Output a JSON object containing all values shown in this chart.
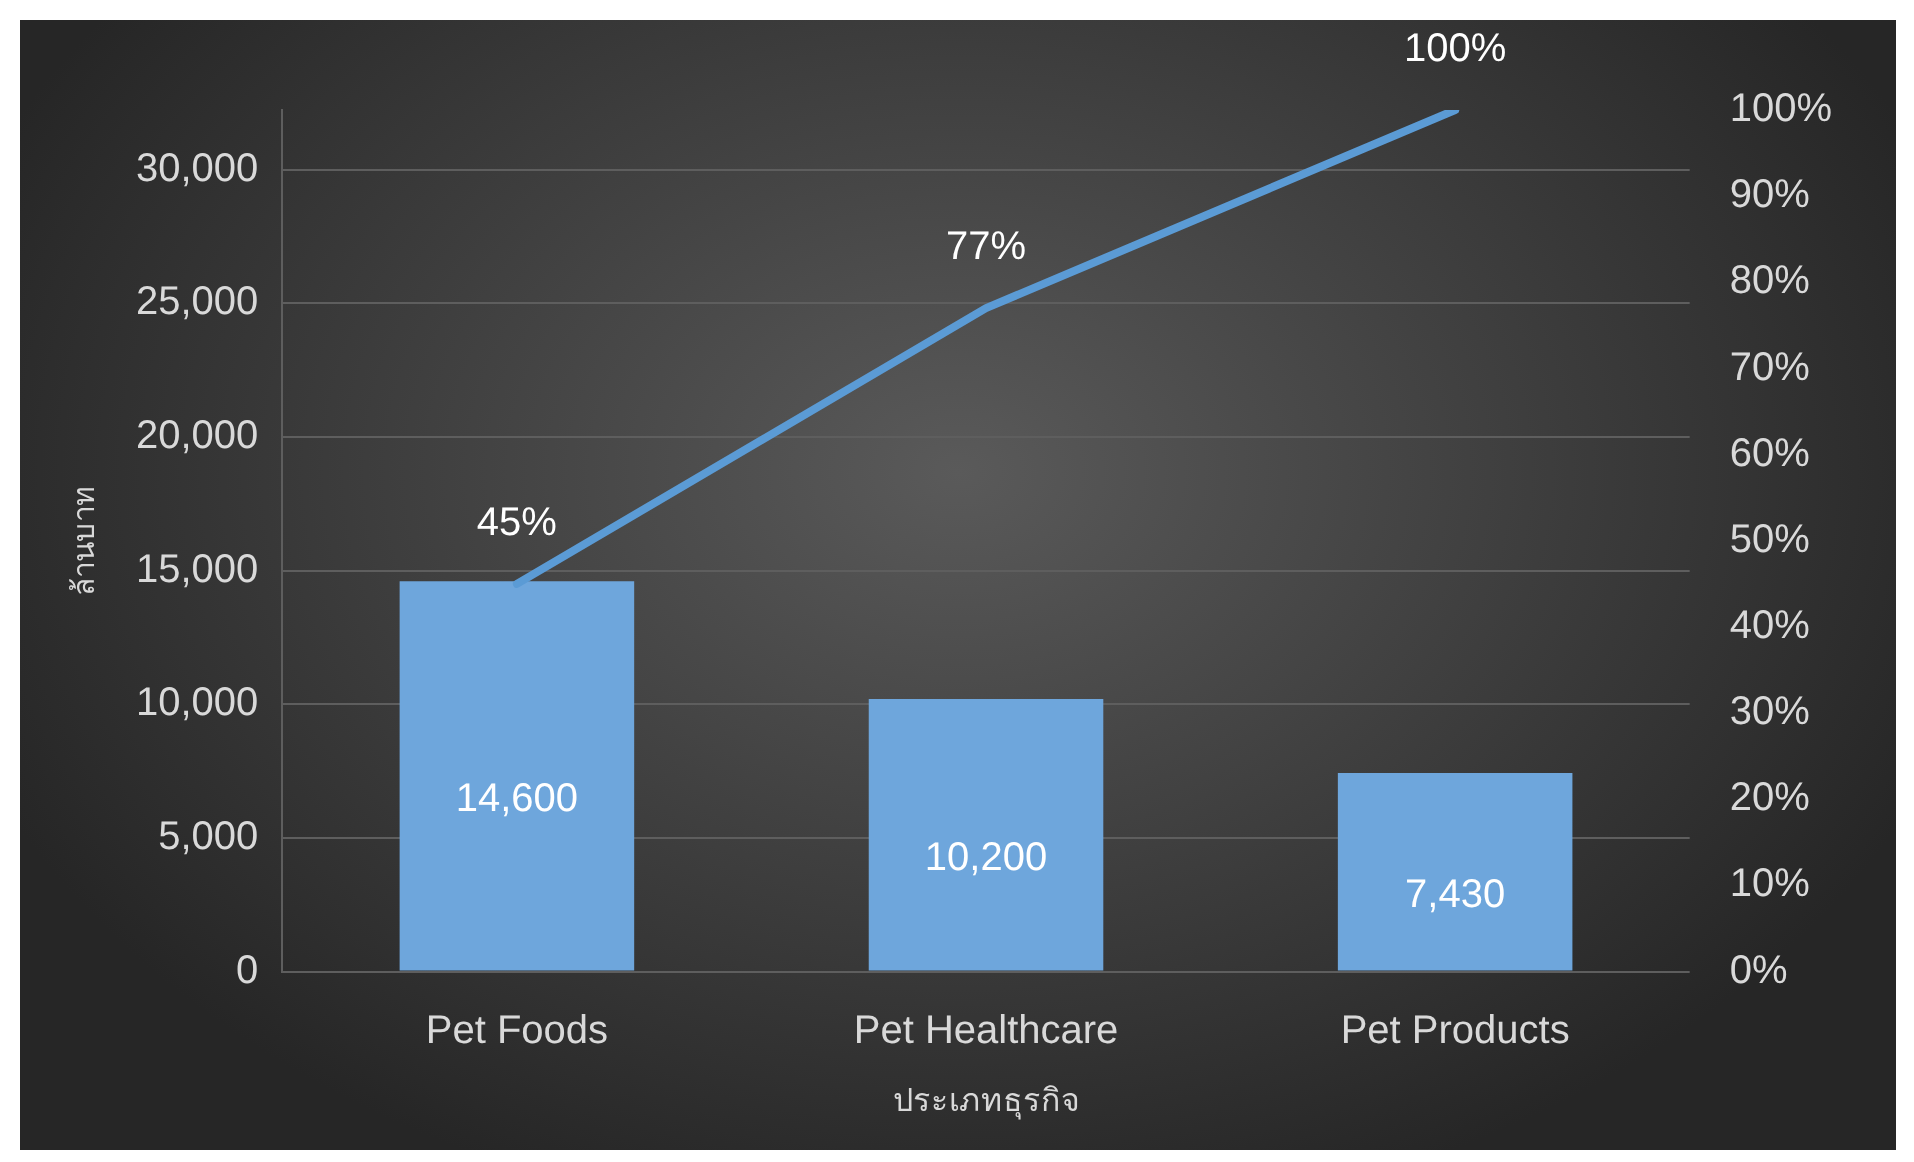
{
  "chart_data": {
    "type": "bar",
    "xlabel": "ประเภทธุรกิจ",
    "ylabel": "ล้านบาท",
    "categories": [
      "Pet Foods",
      "Pet Healthcare",
      "Pet Products"
    ],
    "series": [
      {
        "color": "#6ea6dc",
        "values": [
          14600,
          10200,
          7430
        ]
      },
      {
        "type": "line",
        "axis": "y2",
        "color": "#5b9bd5",
        "values": [
          45,
          77,
          100
        ],
        "value_labels": [
          "45%",
          "77%",
          "100%"
        ]
      }
    ],
    "ylim": [
      0,
      32230
    ],
    "yticks": [
      {
        "value": 0,
        "label": "0"
      },
      {
        "value": 5000,
        "label": "5,000"
      },
      {
        "value": 10000,
        "label": "10,000"
      },
      {
        "value": 15000,
        "label": "15,000"
      },
      {
        "value": 20000,
        "label": "20,000"
      },
      {
        "value": 25000,
        "label": "25,000"
      },
      {
        "value": 30000,
        "label": "30,000"
      }
    ],
    "y2lim": [
      0,
      100
    ],
    "y2ticks": [
      {
        "value": 0,
        "label": "0%"
      },
      {
        "value": 10,
        "label": "10%"
      },
      {
        "value": 20,
        "label": "20%"
      },
      {
        "value": 30,
        "label": "30%"
      },
      {
        "value": 40,
        "label": "40%"
      },
      {
        "value": 50,
        "label": "50%"
      },
      {
        "value": 60,
        "label": "60%"
      },
      {
        "value": 70,
        "label": "70%"
      },
      {
        "value": 80,
        "label": "80%"
      },
      {
        "value": 90,
        "label": "90%"
      },
      {
        "value": 100,
        "label": "100%"
      }
    ],
    "value_labels": [
      "14,600",
      "10,200",
      "7,430"
    ],
    "grid": "y",
    "legend": false,
    "marker": "none",
    "line_style": "solid"
  }
}
